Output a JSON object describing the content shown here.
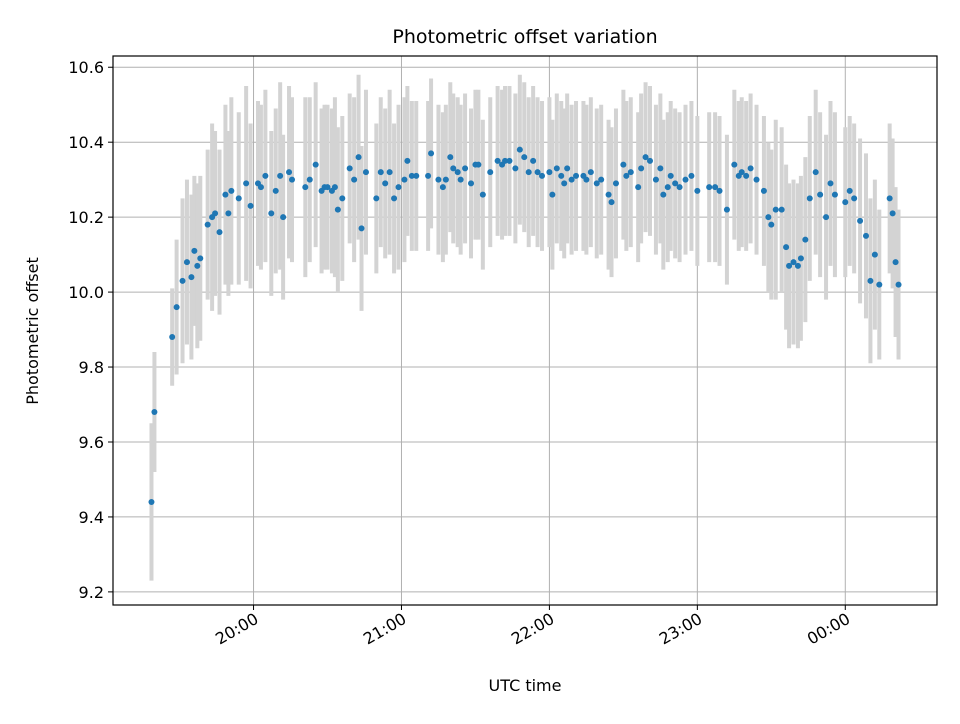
{
  "chart_data": {
    "type": "scatter",
    "title": "Photometric offset variation",
    "xlabel": "UTC time",
    "ylabel": "Photometric offset",
    "ylim": [
      9.165,
      10.63
    ],
    "xlim_hours": [
      19.05,
      24.62
    ],
    "grid": true,
    "x_ticks": [
      {
        "value": 20,
        "label": "20:00"
      },
      {
        "value": 21,
        "label": "21:00"
      },
      {
        "value": 22,
        "label": "22:00"
      },
      {
        "value": 23,
        "label": "23:00"
      },
      {
        "value": 24,
        "label": "00:00"
      }
    ],
    "y_ticks": [
      {
        "value": 9.2,
        "label": "9.2"
      },
      {
        "value": 9.4,
        "label": "9.4"
      },
      {
        "value": 9.6,
        "label": "9.6"
      },
      {
        "value": 9.8,
        "label": "9.8"
      },
      {
        "value": 10.0,
        "label": "10.0"
      },
      {
        "value": 10.2,
        "label": "10.2"
      },
      {
        "value": 10.4,
        "label": "10.4"
      },
      {
        "value": 10.6,
        "label": "10.6"
      }
    ],
    "marker_color": "#1f77b4",
    "errorbar_color": "#d3d3d3",
    "series": [
      {
        "points": [
          [
            19.31,
            9.44,
            0.21
          ],
          [
            19.33,
            9.68,
            0.16
          ],
          [
            19.45,
            9.88,
            0.13
          ],
          [
            19.48,
            9.96,
            0.18
          ],
          [
            19.52,
            10.03,
            0.22
          ],
          [
            19.55,
            10.08,
            0.22
          ],
          [
            19.58,
            10.04,
            0.22
          ],
          [
            19.6,
            10.11,
            0.2
          ],
          [
            19.62,
            10.07,
            0.22
          ],
          [
            19.64,
            10.09,
            0.22
          ],
          [
            19.69,
            10.18,
            0.2
          ],
          [
            19.72,
            10.2,
            0.25
          ],
          [
            19.74,
            10.21,
            0.22
          ],
          [
            19.77,
            10.16,
            0.22
          ],
          [
            19.81,
            10.26,
            0.24
          ],
          [
            19.83,
            10.21,
            0.22
          ],
          [
            19.85,
            10.27,
            0.25
          ],
          [
            19.9,
            10.25,
            0.23
          ],
          [
            19.95,
            10.29,
            0.26
          ],
          [
            19.98,
            10.23,
            0.22
          ],
          [
            20.03,
            10.29,
            0.22
          ],
          [
            20.05,
            10.28,
            0.22
          ],
          [
            20.08,
            10.31,
            0.23
          ],
          [
            20.12,
            10.21,
            0.22
          ],
          [
            20.15,
            10.27,
            0.22
          ],
          [
            20.18,
            10.31,
            0.25
          ],
          [
            20.2,
            10.2,
            0.22
          ],
          [
            20.24,
            10.32,
            0.23
          ],
          [
            20.26,
            10.3,
            0.22
          ],
          [
            20.35,
            10.28,
            0.24
          ],
          [
            20.38,
            10.3,
            0.22
          ],
          [
            20.42,
            10.34,
            0.22
          ],
          [
            20.46,
            10.27,
            0.22
          ],
          [
            20.48,
            10.28,
            0.22
          ],
          [
            20.5,
            10.28,
            0.22
          ],
          [
            20.53,
            10.27,
            0.22
          ],
          [
            20.55,
            10.28,
            0.24
          ],
          [
            20.57,
            10.22,
            0.22
          ],
          [
            20.6,
            10.25,
            0.22
          ],
          [
            20.65,
            10.33,
            0.2
          ],
          [
            20.68,
            10.3,
            0.22
          ],
          [
            20.71,
            10.36,
            0.22
          ],
          [
            20.73,
            10.17,
            0.22
          ],
          [
            20.76,
            10.32,
            0.22
          ],
          [
            20.83,
            10.25,
            0.2
          ],
          [
            20.86,
            10.32,
            0.2
          ],
          [
            20.89,
            10.29,
            0.2
          ],
          [
            20.92,
            10.32,
            0.22
          ],
          [
            20.95,
            10.25,
            0.2
          ],
          [
            20.98,
            10.28,
            0.22
          ],
          [
            21.02,
            10.3,
            0.22
          ],
          [
            21.04,
            10.35,
            0.2
          ],
          [
            21.07,
            10.31,
            0.2
          ],
          [
            21.1,
            10.31,
            0.2
          ],
          [
            21.18,
            10.31,
            0.2
          ],
          [
            21.2,
            10.37,
            0.2
          ],
          [
            21.25,
            10.3,
            0.2
          ],
          [
            21.28,
            10.28,
            0.2
          ],
          [
            21.3,
            10.3,
            0.2
          ],
          [
            21.33,
            10.36,
            0.2
          ],
          [
            21.35,
            10.33,
            0.2
          ],
          [
            21.38,
            10.32,
            0.2
          ],
          [
            21.4,
            10.3,
            0.2
          ],
          [
            21.43,
            10.33,
            0.2
          ],
          [
            21.47,
            10.29,
            0.2
          ],
          [
            21.5,
            10.34,
            0.2
          ],
          [
            21.52,
            10.34,
            0.2
          ],
          [
            21.55,
            10.26,
            0.2
          ],
          [
            21.6,
            10.32,
            0.2
          ],
          [
            21.65,
            10.35,
            0.2
          ],
          [
            21.68,
            10.34,
            0.2
          ],
          [
            21.7,
            10.35,
            0.2
          ],
          [
            21.73,
            10.35,
            0.2
          ],
          [
            21.77,
            10.33,
            0.2
          ],
          [
            21.8,
            10.38,
            0.2
          ],
          [
            21.83,
            10.36,
            0.2
          ],
          [
            21.86,
            10.32,
            0.2
          ],
          [
            21.89,
            10.35,
            0.2
          ],
          [
            21.92,
            10.32,
            0.2
          ],
          [
            21.95,
            10.31,
            0.2
          ],
          [
            22.0,
            10.32,
            0.2
          ],
          [
            22.02,
            10.26,
            0.2
          ],
          [
            22.05,
            10.33,
            0.2
          ],
          [
            22.08,
            10.31,
            0.2
          ],
          [
            22.1,
            10.29,
            0.2
          ],
          [
            22.12,
            10.33,
            0.2
          ],
          [
            22.15,
            10.3,
            0.2
          ],
          [
            22.18,
            10.31,
            0.2
          ],
          [
            22.23,
            10.31,
            0.2
          ],
          [
            22.25,
            10.3,
            0.2
          ],
          [
            22.28,
            10.32,
            0.2
          ],
          [
            22.32,
            10.29,
            0.2
          ],
          [
            22.35,
            10.3,
            0.2
          ],
          [
            22.4,
            10.26,
            0.2
          ],
          [
            22.42,
            10.24,
            0.2
          ],
          [
            22.45,
            10.29,
            0.2
          ],
          [
            22.5,
            10.34,
            0.2
          ],
          [
            22.52,
            10.31,
            0.2
          ],
          [
            22.55,
            10.32,
            0.2
          ],
          [
            22.6,
            10.28,
            0.2
          ],
          [
            22.62,
            10.33,
            0.2
          ],
          [
            22.65,
            10.36,
            0.2
          ],
          [
            22.68,
            10.35,
            0.2
          ],
          [
            22.72,
            10.3,
            0.2
          ],
          [
            22.75,
            10.33,
            0.2
          ],
          [
            22.77,
            10.26,
            0.2
          ],
          [
            22.8,
            10.28,
            0.2
          ],
          [
            22.82,
            10.31,
            0.2
          ],
          [
            22.85,
            10.29,
            0.2
          ],
          [
            22.88,
            10.28,
            0.2
          ],
          [
            22.92,
            10.3,
            0.2
          ],
          [
            22.96,
            10.31,
            0.2
          ],
          [
            23.0,
            10.27,
            0.2
          ],
          [
            23.08,
            10.28,
            0.2
          ],
          [
            23.12,
            10.28,
            0.2
          ],
          [
            23.15,
            10.27,
            0.2
          ],
          [
            23.2,
            10.22,
            0.2
          ],
          [
            23.25,
            10.34,
            0.2
          ],
          [
            23.28,
            10.31,
            0.2
          ],
          [
            23.3,
            10.32,
            0.2
          ],
          [
            23.33,
            10.31,
            0.2
          ],
          [
            23.36,
            10.33,
            0.2
          ],
          [
            23.4,
            10.3,
            0.2
          ],
          [
            23.45,
            10.27,
            0.2
          ],
          [
            23.48,
            10.2,
            0.2
          ],
          [
            23.5,
            10.18,
            0.2
          ],
          [
            23.53,
            10.22,
            0.24
          ],
          [
            23.57,
            10.22,
            0.22
          ],
          [
            23.6,
            10.12,
            0.22
          ],
          [
            23.62,
            10.07,
            0.22
          ],
          [
            23.65,
            10.08,
            0.22
          ],
          [
            23.68,
            10.07,
            0.22
          ],
          [
            23.7,
            10.09,
            0.22
          ],
          [
            23.73,
            10.14,
            0.22
          ],
          [
            23.76,
            10.25,
            0.22
          ],
          [
            23.8,
            10.32,
            0.22
          ],
          [
            23.83,
            10.26,
            0.22
          ],
          [
            23.87,
            10.2,
            0.22
          ],
          [
            23.9,
            10.29,
            0.22
          ],
          [
            23.93,
            10.26,
            0.22
          ],
          [
            24.0,
            10.24,
            0.2
          ],
          [
            24.03,
            10.27,
            0.2
          ],
          [
            24.06,
            10.25,
            0.2
          ],
          [
            24.1,
            10.19,
            0.22
          ],
          [
            24.14,
            10.15,
            0.22
          ],
          [
            24.17,
            10.03,
            0.22
          ],
          [
            24.2,
            10.1,
            0.2
          ],
          [
            24.23,
            10.02,
            0.2
          ],
          [
            24.3,
            10.25,
            0.2
          ],
          [
            24.32,
            10.21,
            0.2
          ],
          [
            24.34,
            10.08,
            0.2
          ],
          [
            24.36,
            10.02,
            0.2
          ]
        ]
      }
    ]
  }
}
